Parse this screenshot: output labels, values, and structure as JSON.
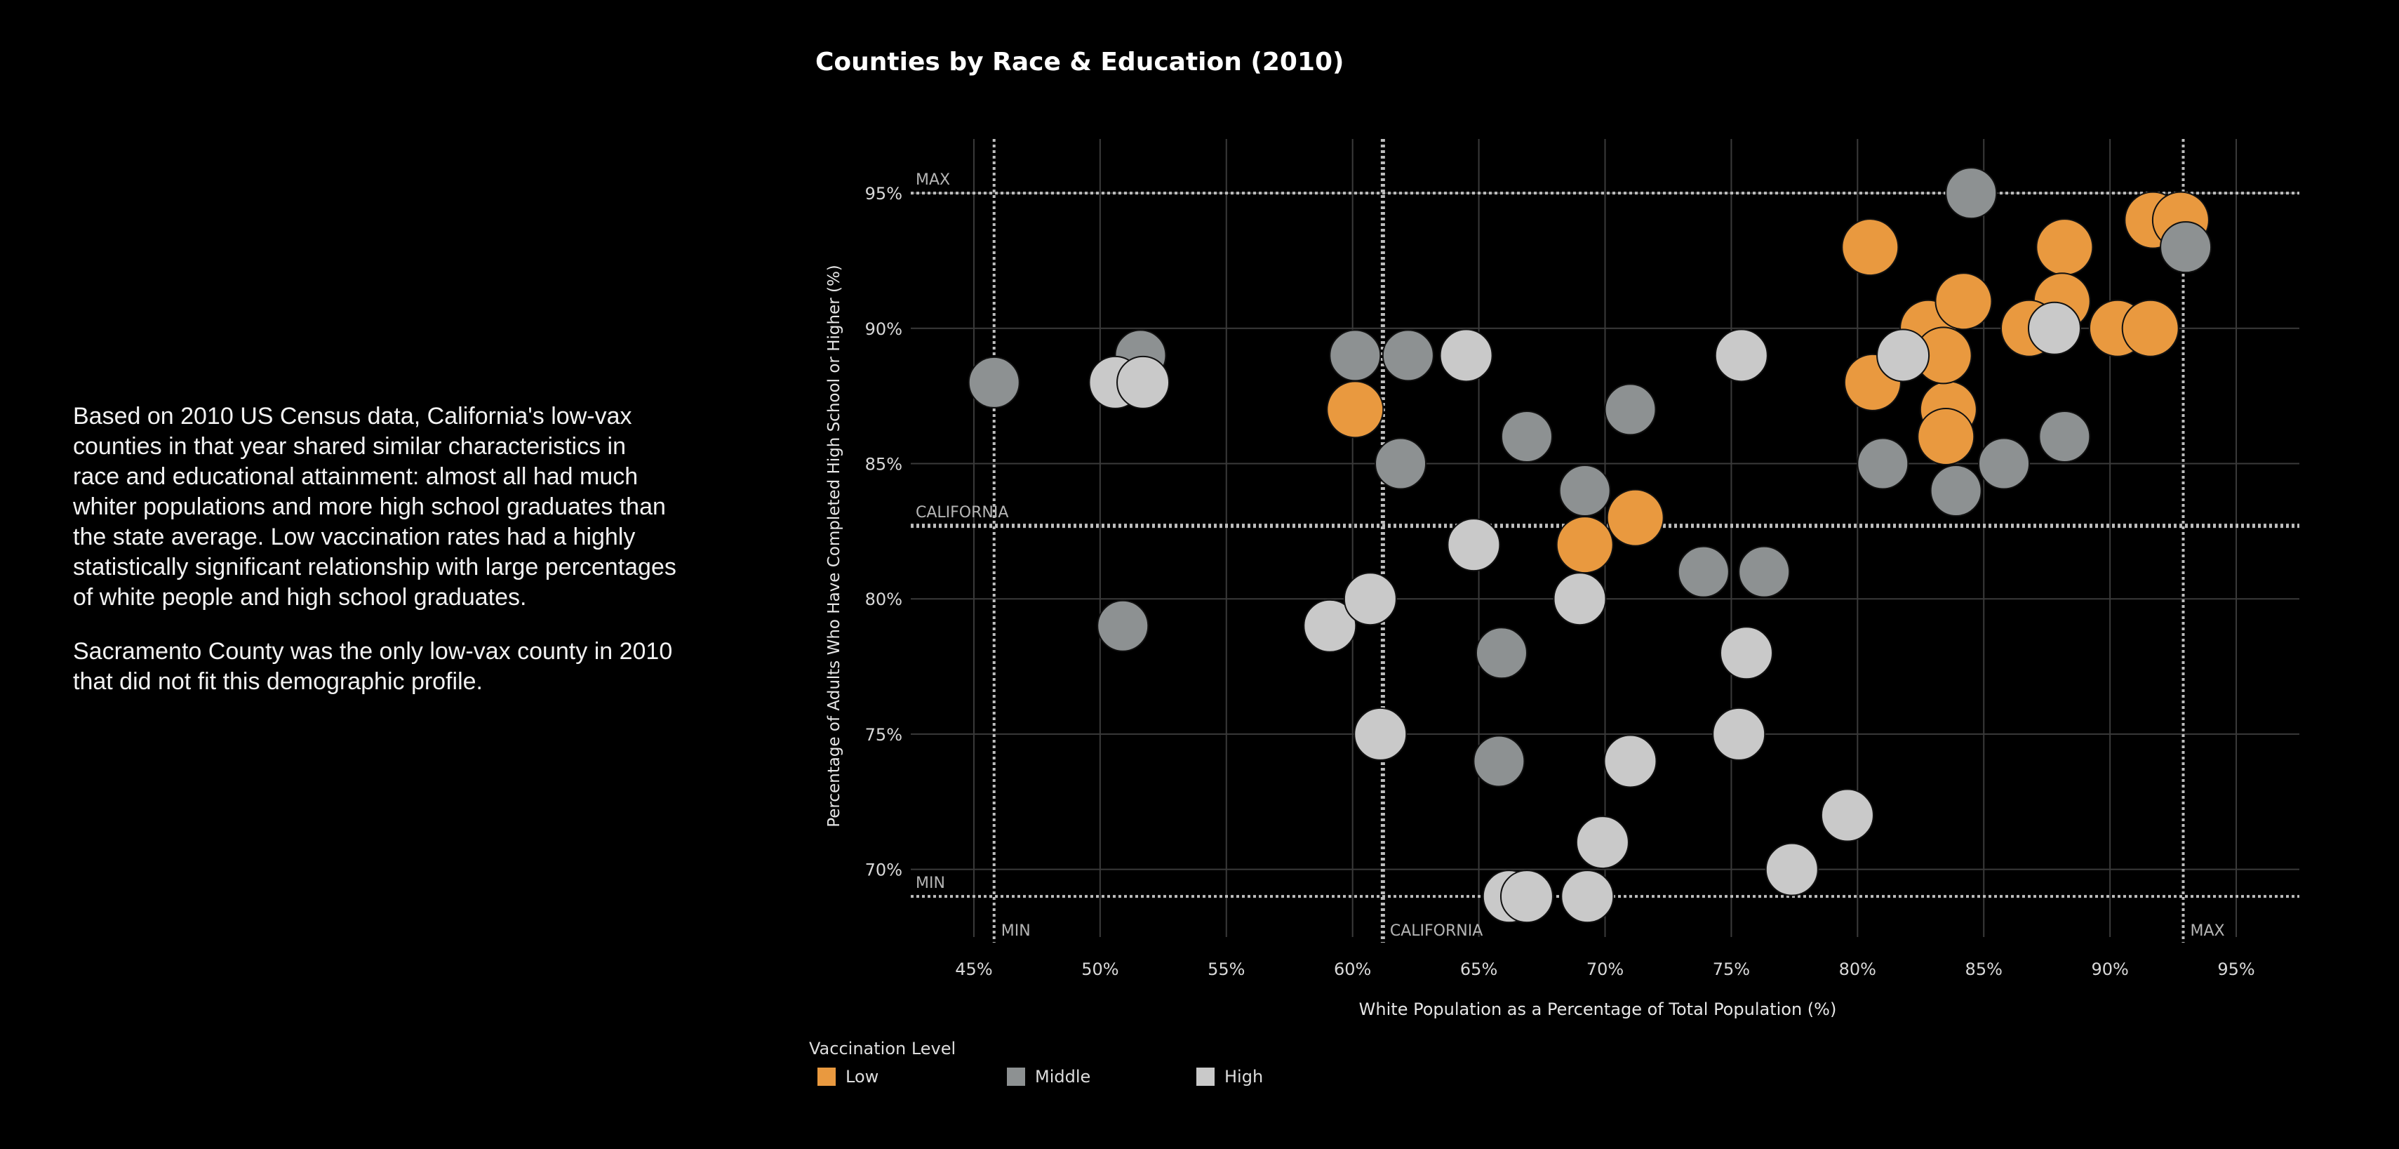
{
  "narrative": {
    "p1": "Based on 2010 US Census data, California's low-vax counties in that year shared similar characteristics in race and educational attainment: almost all had much whiter populations and more high school graduates than the state average. Low vaccination rates had a highly statistically significant relationship with large percentages of white people and high school graduates.",
    "p2": "Sacramento County was the only low-vax county in 2010 that did not fit this demographic profile."
  },
  "chart_data": {
    "type": "scatter",
    "title": "Counties by Race & Education (2010)",
    "xlabel": "White Population as a Percentage of Total Population (%)",
    "ylabel": "Percentage of Adults Who Have Completed High School or Higher (%)",
    "xlim": [
      42.5,
      97.5
    ],
    "ylim": [
      67.5,
      97
    ],
    "xticks": [
      45,
      50,
      55,
      60,
      65,
      70,
      75,
      80,
      85,
      90,
      95
    ],
    "xtick_labels": [
      "45%",
      "50%",
      "55%",
      "60%",
      "65%",
      "70%",
      "75%",
      "80%",
      "85%",
      "90%",
      "95%"
    ],
    "yticks": [
      70,
      75,
      80,
      85,
      90,
      95
    ],
    "ytick_labels": [
      "70%",
      "75%",
      "80%",
      "85%",
      "90%",
      "95%"
    ],
    "grid": true,
    "reference_lines": {
      "x": [
        {
          "label": "MIN",
          "value": 45.8
        },
        {
          "label": "CALIFORNIA",
          "value": 61.2
        },
        {
          "label": "MAX",
          "value": 92.9
        }
      ],
      "y": [
        {
          "label": "MAX",
          "value": 95
        },
        {
          "label": "CALIFORNIA",
          "value": 82.7
        },
        {
          "label": "MIN",
          "value": 69
        }
      ]
    },
    "legend": {
      "title": "Vaccination Level",
      "position": "bottom-left",
      "items": [
        {
          "level": "Low",
          "color": "#e9993f"
        },
        {
          "level": "Middle",
          "color": "#8d9192"
        },
        {
          "level": "High",
          "color": "#c9c9c9"
        }
      ]
    },
    "series": [
      {
        "name": "Low",
        "color": "#e9993f",
        "radius": 40,
        "x": [
          60.1,
          71.2,
          69.2,
          80.5,
          80.6,
          82.8,
          84.2,
          83.6,
          83.5,
          83.4,
          88.2,
          88.1,
          86.8,
          90.3,
          91.6,
          91.7,
          92.8
        ],
        "y": [
          87,
          83,
          82,
          93,
          88,
          90,
          91,
          87,
          86,
          89,
          93,
          91,
          90,
          90,
          90,
          94,
          94
        ]
      },
      {
        "name": "Middle",
        "color": "#8d9192",
        "radius": 36,
        "x": [
          45.8,
          51.6,
          50.9,
          60.1,
          62.2,
          61.9,
          66.9,
          71.0,
          69.2,
          65.9,
          65.8,
          73.9,
          76.3,
          81.0,
          84.5,
          83.9,
          85.8,
          88.2,
          93.0
        ],
        "y": [
          88,
          89,
          79,
          89,
          89,
          85,
          86,
          87,
          84,
          78,
          74,
          81,
          81,
          85,
          95,
          84,
          85,
          86,
          93
        ]
      },
      {
        "name": "High",
        "color": "#c9c9c9",
        "radius": 37,
        "x": [
          50.6,
          51.7,
          59.1,
          60.7,
          61.1,
          64.5,
          64.8,
          69.0,
          69.3,
          69.9,
          71.0,
          66.2,
          66.9,
          75.4,
          75.6,
          75.3,
          77.4,
          79.6,
          81.8,
          87.8
        ],
        "y": [
          88,
          88,
          79,
          80,
          75,
          89,
          82,
          80,
          69,
          71,
          74,
          69,
          69,
          89,
          78,
          75,
          70,
          72,
          89,
          90
        ]
      }
    ]
  }
}
